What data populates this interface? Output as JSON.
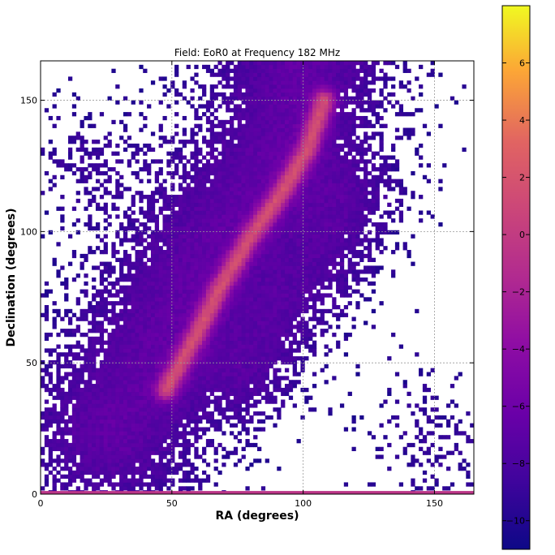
{
  "chart_data": {
    "type": "heatmap",
    "title": "Field: EoR0 at Frequency 182 MHz",
    "xlabel": "RA (degrees)",
    "ylabel": "Declination (degrees)",
    "xlim": [
      0,
      165
    ],
    "ylim": [
      0,
      165
    ],
    "x_ticks": [
      0,
      50,
      100,
      150
    ],
    "y_ticks": [
      0,
      50,
      100,
      150
    ],
    "x_tick_labels": [
      "0",
      "50",
      "100",
      "150"
    ],
    "y_tick_labels": [
      "0",
      "50",
      "100",
      "150"
    ],
    "grid": true,
    "colormap": "plasma",
    "colorbar": {
      "range": [
        -11,
        8
      ],
      "ticks": [
        -10,
        -8,
        -6,
        -4,
        -2,
        0,
        2,
        4,
        6
      ],
      "tick_labels": [
        "−10",
        "−8",
        "−6",
        "−4",
        "−2",
        "0",
        "2",
        "4",
        "6"
      ]
    },
    "features": {
      "bright_ridge": [
        [
          48,
          40
        ],
        [
          60,
          62
        ],
        [
          68,
          78
        ],
        [
          80,
          98
        ],
        [
          92,
          115
        ],
        [
          102,
          132
        ],
        [
          108,
          150
        ]
      ],
      "broad_band": [
        [
          28,
          25
        ],
        [
          40,
          45
        ],
        [
          55,
          75
        ],
        [
          70,
          100
        ],
        [
          85,
          120
        ],
        [
          95,
          140
        ],
        [
          100,
          165
        ]
      ],
      "secondary_lobe": [
        [
          80,
          45
        ],
        [
          95,
          70
        ],
        [
          110,
          90
        ],
        [
          118,
          110
        ]
      ]
    }
  }
}
